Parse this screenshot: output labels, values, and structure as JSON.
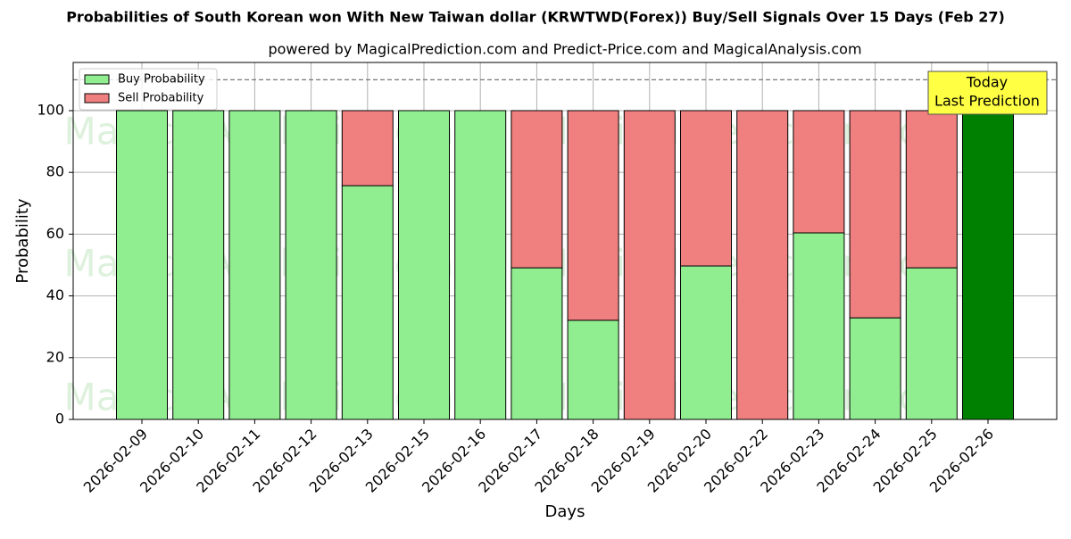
{
  "chart_data": {
    "type": "stacked_bar",
    "title": "Probabilities of South Korean won With New Taiwan dollar (KRWTWD(Forex)) Buy/Sell Signals Over 15 Days (Feb 27)",
    "subtitle": "powered by MagicalPrediction.com and Predict-Price.com and MagicalAnalysis.com",
    "x_label": "Days",
    "y_label": "Probability",
    "categories": [
      "2026-02-09",
      "2026-02-10",
      "2026-02-11",
      "2026-02-12",
      "2026-02-13",
      "2026-02-15",
      "2026-02-16",
      "2026-02-17",
      "2026-02-18",
      "2026-02-19",
      "2026-02-20",
      "2026-02-22",
      "2026-02-23",
      "2026-02-24",
      "2026-02-25",
      "2026-02-26"
    ],
    "series": [
      {
        "name": "Buy Probability",
        "color": "#90ee90",
        "values": [
          100,
          100,
          100,
          100,
          75.7,
          100,
          100,
          49.1,
          32.1,
          0,
          49.7,
          0,
          60.4,
          32.9,
          49.1,
          100
        ]
      },
      {
        "name": "Sell Probability",
        "color": "#f08080",
        "values": [
          0,
          0,
          0,
          0,
          24.3,
          0,
          0,
          50.9,
          67.9,
          100,
          50.3,
          100,
          39.6,
          67.1,
          50.9,
          0
        ]
      }
    ],
    "today_color": "#008000",
    "annotation": [
      "Today",
      "Last Prediction"
    ],
    "hline": 110,
    "watermarks": [
      "MagicalAnalysis.com",
      "MagicalPrediction.com"
    ],
    "ylim": [
      0,
      115.6
    ],
    "yticks": [
      0,
      20,
      40,
      60,
      80,
      100
    ],
    "grid": true,
    "legend": "upper left"
  }
}
